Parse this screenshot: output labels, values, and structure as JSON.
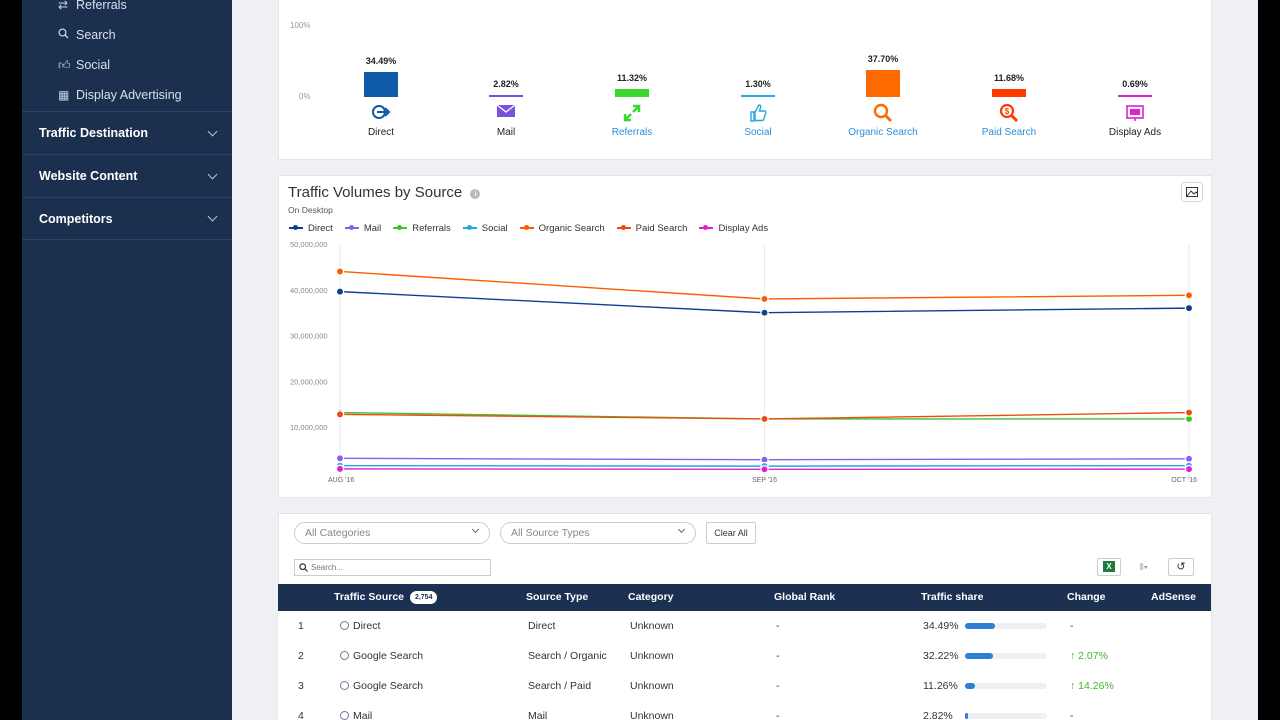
{
  "sidebar": {
    "sub_items": [
      {
        "label": "Referrals",
        "icon": "referrals-icon"
      },
      {
        "label": "Search",
        "icon": "search-icon"
      },
      {
        "label": "Social",
        "icon": "thumbs-up-icon"
      },
      {
        "label": "Display Advertising",
        "icon": "display-ad-icon"
      }
    ],
    "sections": [
      {
        "label": "Traffic Destination"
      },
      {
        "label": "Website Content"
      },
      {
        "label": "Competitors"
      }
    ]
  },
  "share_overview": {
    "axis_top": "100%",
    "axis_bottom": "0%",
    "sources": [
      {
        "label": "Direct",
        "pct": "34.49%",
        "value": 34.49,
        "color": "#0e5aa7",
        "label_color": "#222222"
      },
      {
        "label": "Mail",
        "pct": "2.82%",
        "value": 2.82,
        "color": "#7b4fe0",
        "label_color": "#222222"
      },
      {
        "label": "Referrals",
        "pct": "11.32%",
        "value": 11.32,
        "color": "#3bd62e",
        "label_color": "#2a8fd6"
      },
      {
        "label": "Social",
        "pct": "1.30%",
        "value": 1.3,
        "color": "#29a7e1",
        "label_color": "#2a8fd6"
      },
      {
        "label": "Organic Search",
        "pct": "37.70%",
        "value": 37.7,
        "color": "#ff6a00",
        "label_color": "#2a8fd6"
      },
      {
        "label": "Paid Search",
        "pct": "11.68%",
        "value": 11.68,
        "color": "#ff3b00",
        "label_color": "#2a8fd6"
      },
      {
        "label": "Display Ads",
        "pct": "0.69%",
        "value": 0.69,
        "color": "#e020d0",
        "label_color": "#222222"
      }
    ]
  },
  "volumes": {
    "title": "Traffic Volumes by Source",
    "subtitle": "On Desktop",
    "legend": [
      {
        "name": "Direct",
        "color": "#0d3f8f"
      },
      {
        "name": "Mail",
        "color": "#8a5cf0"
      },
      {
        "name": "Referrals",
        "color": "#3ec22e"
      },
      {
        "name": "Social",
        "color": "#1fa9e6"
      },
      {
        "name": "Organic Search",
        "color": "#ff5a00"
      },
      {
        "name": "Paid Search",
        "color": "#f04a10"
      },
      {
        "name": "Display Ads",
        "color": "#e01fd6"
      }
    ]
  },
  "chart_data": {
    "type": "line",
    "title": "Traffic Volumes by Source",
    "subtitle": "On Desktop",
    "x": [
      "AUG '16",
      "SEP '16",
      "OCT '16"
    ],
    "yticks": [
      "50,000,000",
      "40,000,000",
      "30,000,000",
      "20,000,000",
      "10,000,000"
    ],
    "ylim": [
      0,
      50000000
    ],
    "series": [
      {
        "name": "Organic Search",
        "color": "#ff5a00",
        "values": [
          44000000,
          38000000,
          38800000
        ]
      },
      {
        "name": "Direct",
        "color": "#0d3f8f",
        "values": [
          39600000,
          35000000,
          36000000
        ]
      },
      {
        "name": "Referrals",
        "color": "#3ec22e",
        "values": [
          13200000,
          11800000,
          11800000
        ]
      },
      {
        "name": "Paid Search",
        "color": "#f04a10",
        "values": [
          12800000,
          11800000,
          13200000
        ]
      },
      {
        "name": "Mail",
        "color": "#8a5cf0",
        "values": [
          3200000,
          2900000,
          3100000
        ]
      },
      {
        "name": "Social",
        "color": "#1fa9e6",
        "values": [
          1600000,
          1500000,
          1600000
        ]
      },
      {
        "name": "Display Ads",
        "color": "#e01fd6",
        "values": [
          900000,
          800000,
          850000
        ]
      }
    ]
  },
  "filters": {
    "categories_placeholder": "All Categories",
    "source_types_placeholder": "All Source Types",
    "clear_label": "Clear All",
    "search_placeholder": "Search..."
  },
  "table": {
    "headers": {
      "source": "Traffic Source",
      "count": "2,754",
      "type": "Source Type",
      "category": "Category",
      "rank": "Global Rank",
      "share": "Traffic share",
      "change": "Change",
      "adsense": "AdSense"
    },
    "rows": [
      {
        "num": "1",
        "source": "Direct",
        "type": "Direct",
        "category": "Unknown",
        "rank": "-",
        "share": "34.49%",
        "share_value": 34.49,
        "change": "-"
      },
      {
        "num": "2",
        "source": "Google Search",
        "type": "Search / Organic",
        "category": "Unknown",
        "rank": "-",
        "share": "32.22%",
        "share_value": 32.22,
        "change": "↑ 2.07%"
      },
      {
        "num": "3",
        "source": "Google Search",
        "type": "Search / Paid",
        "category": "Unknown",
        "rank": "-",
        "share": "11.26%",
        "share_value": 11.26,
        "change": "↑ 14.26%"
      },
      {
        "num": "4",
        "source": "Mail",
        "type": "Mail",
        "category": "Unknown",
        "rank": "-",
        "share": "2.82%",
        "share_value": 2.82,
        "change": "-"
      }
    ]
  }
}
